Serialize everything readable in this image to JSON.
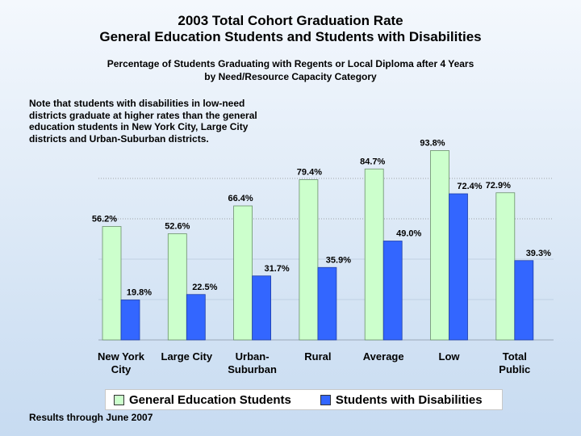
{
  "title_line1": "2003 Total Cohort Graduation Rate",
  "title_line2": "General Education Students and Students with Disabilities",
  "subtitle_line1": "Percentage of Students Graduating with Regents or Local Diploma after 4 Years",
  "subtitle_line2": "by Need/Resource Capacity Category",
  "note": "Note that students with disabilities in low-need districts graduate at higher rates than the general education students in New York City, Large City districts and Urban-Suburban districts.",
  "footer": "Results through June 2007",
  "colors": {
    "general": "#ccffcc",
    "disabilities": "#3366ff"
  },
  "chart_data": {
    "type": "bar",
    "title": "2003 Total Cohort Graduation Rate",
    "categories": [
      "New York City",
      "Large City",
      "Urban-Suburban",
      "Rural",
      "Average",
      "Low",
      "Total Public"
    ],
    "category_lines": [
      [
        "New York",
        "City"
      ],
      [
        "Large City"
      ],
      [
        "Urban-",
        "Suburban"
      ],
      [
        "Rural"
      ],
      [
        "Average"
      ],
      [
        "Low"
      ],
      [
        "Total",
        "Public"
      ]
    ],
    "series": [
      {
        "name": "General Education Students",
        "values": [
          56.2,
          52.6,
          66.4,
          79.4,
          84.7,
          93.8,
          72.9
        ],
        "labels": [
          "56.2%",
          "52.6%",
          "66.4%",
          "79.4%",
          "84.7%",
          "93.8%",
          "72.9%"
        ]
      },
      {
        "name": "Students with Disabilities",
        "values": [
          19.8,
          22.5,
          31.7,
          35.9,
          49.0,
          72.4,
          39.3
        ],
        "labels": [
          "19.8%",
          "22.5%",
          "31.7%",
          "35.9%",
          "49.0%",
          "72.4%",
          "39.3%"
        ]
      }
    ],
    "ylim": [
      0,
      100
    ],
    "legend": "bottom"
  }
}
